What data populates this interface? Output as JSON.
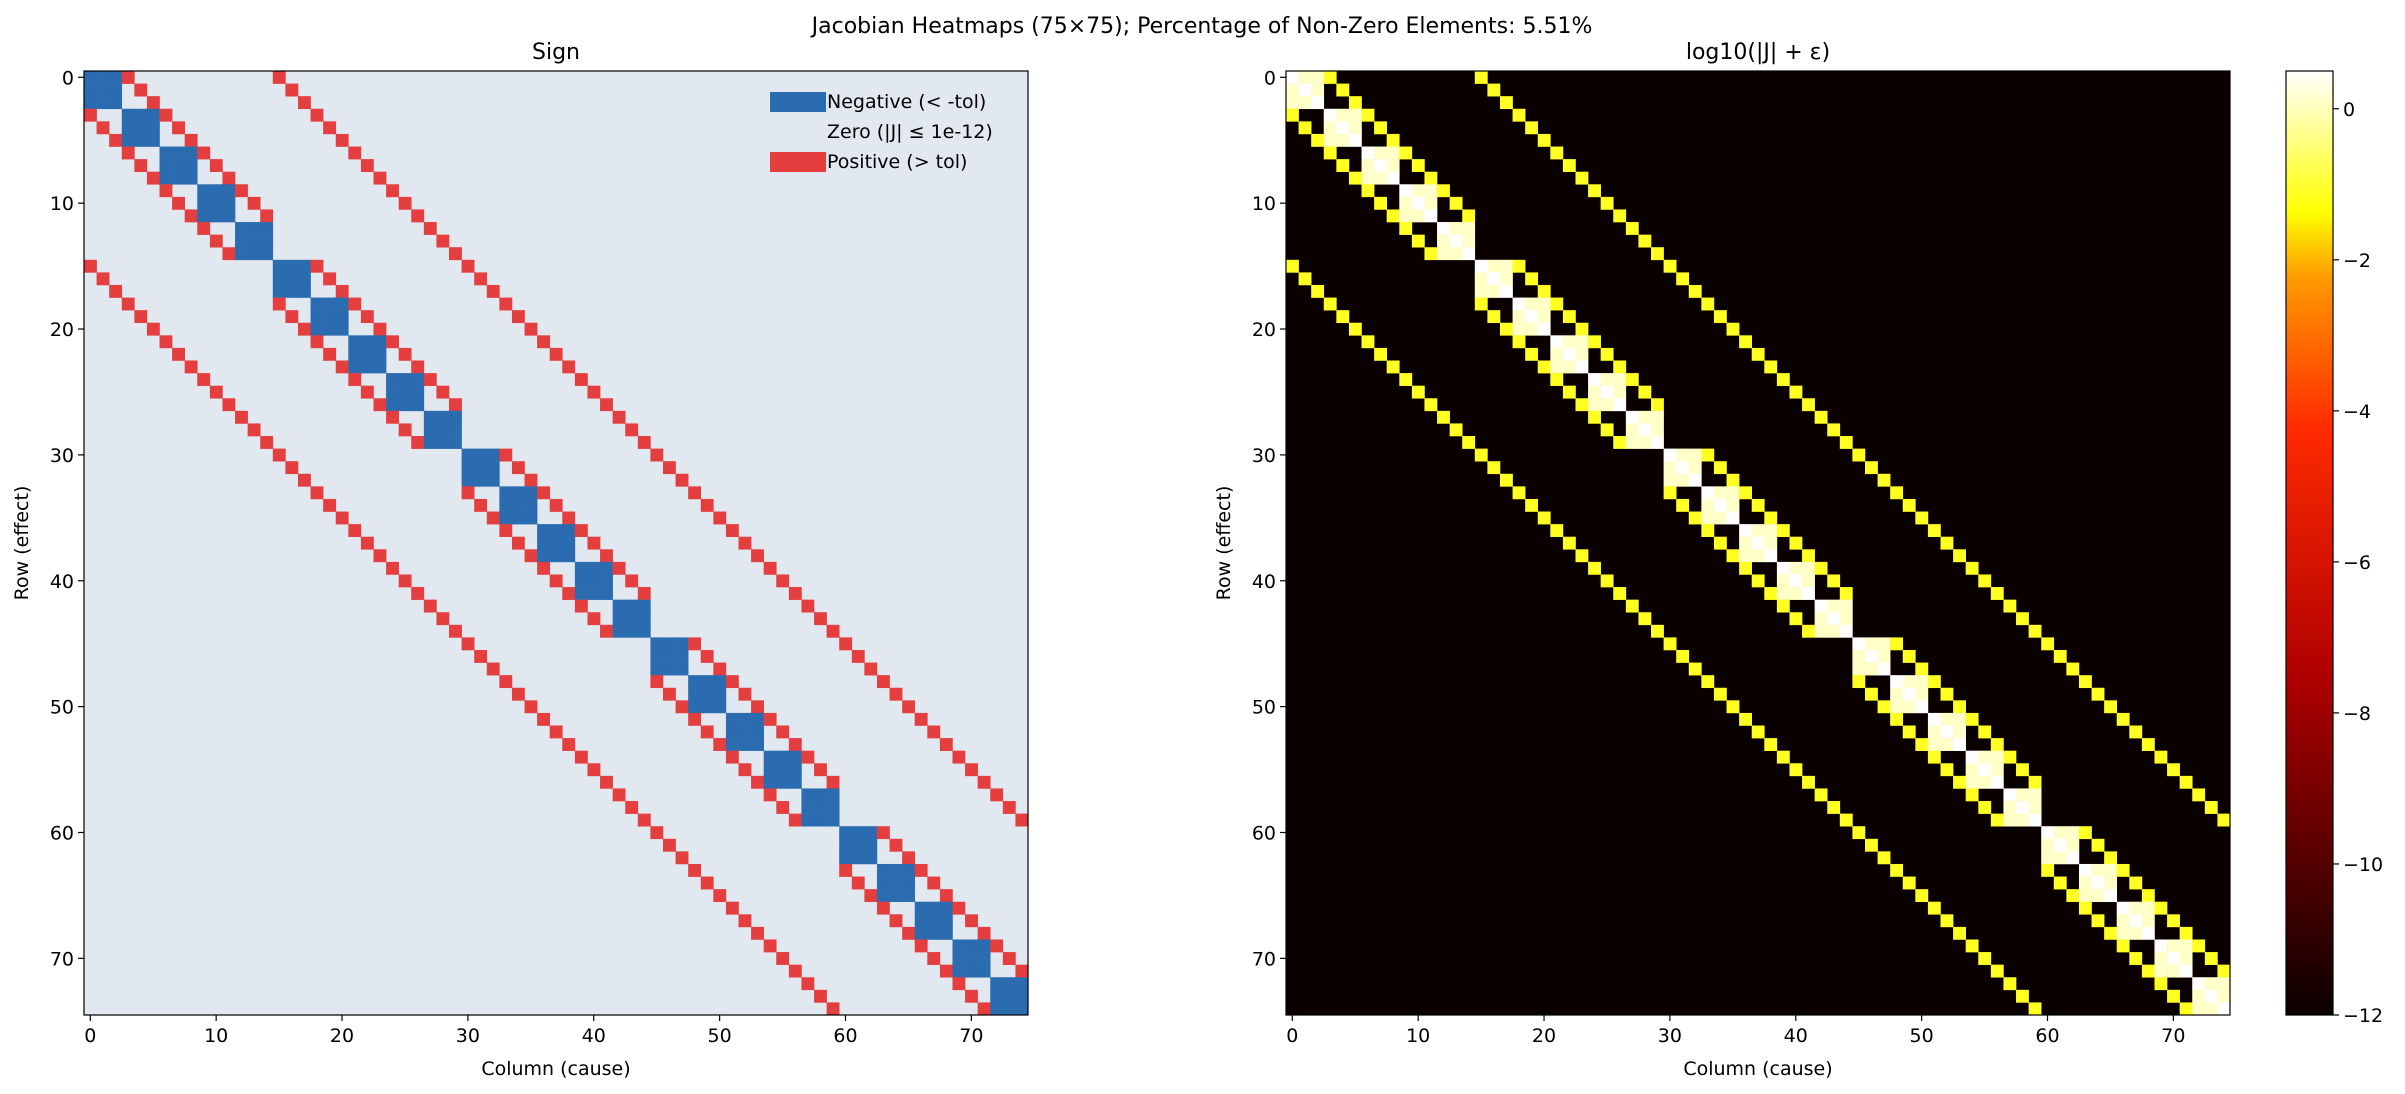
{
  "figure": {
    "suptitle": "Jacobian Heatmaps (75×75); Percentage of Non-Zero Elements: 5.51%"
  },
  "colors": {
    "negative": "#2b6cb0",
    "zero": "#e2e8f0",
    "positive": "#e53e3e",
    "heat_stops": [
      "#0a0000",
      "#ff0000",
      "#ffff00",
      "#ffffff"
    ]
  },
  "chart_data": [
    {
      "type": "heatmap",
      "title": "Sign",
      "xlabel": "Column (cause)",
      "ylabel": "Row (effect)",
      "size": 75,
      "xticks": [
        0,
        10,
        20,
        30,
        40,
        50,
        60,
        70
      ],
      "yticks": [
        0,
        10,
        20,
        30,
        40,
        50,
        60,
        70
      ],
      "categories": [
        "Negative (< -tol)",
        "Zero (|J| ≤ 1e-12)",
        "Positive (> tol)"
      ],
      "legend_position": "top-right",
      "structure": {
        "description": "5x5 block-tridiagonal pattern of 15x15 blocks, each block holding 5 species-groups of 3",
        "diagonal_value": "negative",
        "offdiag_value": "positive"
      }
    },
    {
      "type": "heatmap",
      "title": "log10(|J| + ε)",
      "xlabel": "Column (cause)",
      "ylabel": "Row (effect)",
      "size": 75,
      "xticks": [
        0,
        10,
        20,
        30,
        40,
        50,
        60,
        70
      ],
      "yticks": [
        0,
        10,
        20,
        30,
        40,
        50,
        60,
        70
      ],
      "colorbar": {
        "min": -12,
        "max": 0.5,
        "ticks": [
          0,
          -2,
          -4,
          -6,
          -8,
          -10,
          -12
        ],
        "colormap": "hot"
      }
    }
  ]
}
